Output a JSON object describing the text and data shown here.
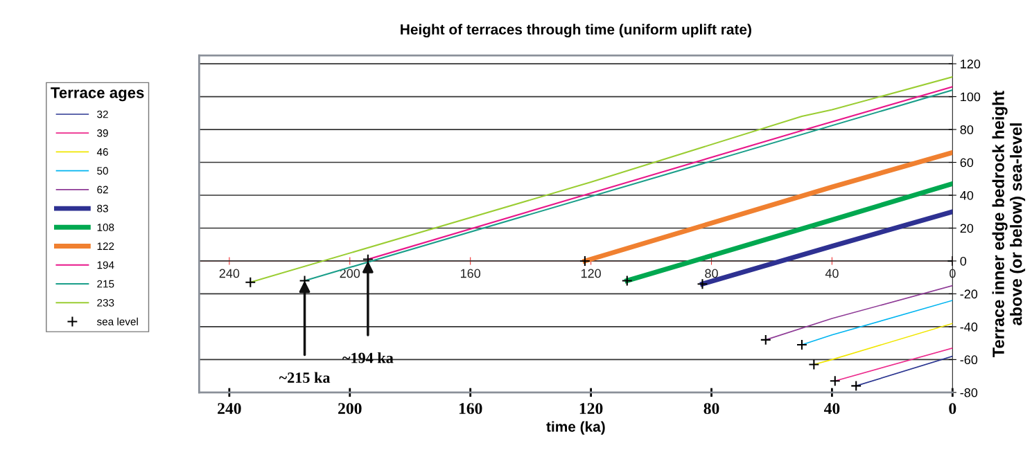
{
  "chart_data": {
    "type": "line",
    "title": "Height of terraces through time (uniform uplift rate)",
    "xlabel": "time (ka)",
    "ylabel": "Terrace inner edge bedrock height\nabove (or below) sea-level",
    "legend_title": "Terrace ages",
    "legend": "left",
    "grid": "y",
    "line_style": "solid",
    "xlim": [
      250,
      0
    ],
    "xticks": [
      240,
      200,
      160,
      120,
      80,
      40,
      0
    ],
    "x2lim": [
      250,
      0
    ],
    "x2ticks": [
      240,
      200,
      160,
      120,
      80,
      40,
      0
    ],
    "ylim": [
      -80,
      125
    ],
    "yticks": [
      -80,
      -60,
      -40,
      -20,
      0,
      20,
      40,
      60,
      80,
      100,
      120
    ],
    "series": [
      {
        "name": "32",
        "color": "#2a3590",
        "x": [
          32,
          0
        ],
        "values": [
          -76,
          -58
        ]
      },
      {
        "name": "39",
        "color": "#ec2a8c",
        "x": [
          39,
          0
        ],
        "values": [
          -73,
          -53
        ]
      },
      {
        "name": "46",
        "color": "#f0e600",
        "x": [
          46,
          40,
          0
        ],
        "values": [
          -63,
          -60,
          -38
        ]
      },
      {
        "name": "50",
        "color": "#00b4f0",
        "x": [
          50,
          40,
          0
        ],
        "values": [
          -51,
          -45,
          -24
        ]
      },
      {
        "name": "62",
        "color": "#8e3a96",
        "x": [
          62,
          40,
          0
        ],
        "values": [
          -48,
          -35,
          -15
        ]
      },
      {
        "name": "83",
        "color": "#2e3192",
        "x": [
          83,
          40,
          0
        ],
        "values": [
          -14,
          9,
          30
        ]
      },
      {
        "name": "108",
        "color": "#00a850",
        "x": [
          108,
          40,
          0
        ],
        "values": [
          -12,
          25,
          47
        ]
      },
      {
        "name": "122",
        "color": "#f08030",
        "x": [
          122,
          40,
          0
        ],
        "values": [
          0,
          45,
          66
        ]
      },
      {
        "name": "194",
        "color": "#e8178a",
        "x": [
          194,
          47,
          0
        ],
        "values": [
          1,
          81,
          106
        ]
      },
      {
        "name": "215",
        "color": "#1a9e8a",
        "x": [
          215,
          100,
          0
        ],
        "values": [
          -12,
          50,
          104
        ]
      },
      {
        "name": "233",
        "color": "#9acd32",
        "x": [
          233,
          120,
          50,
          40,
          0
        ],
        "values": [
          -13,
          48,
          88,
          92,
          112
        ]
      },
      {
        "name": "sea level",
        "type": "scatter",
        "marker": "cross",
        "color": "#000000",
        "x": [
          233,
          215,
          194,
          122,
          108,
          83,
          62,
          50,
          46,
          39,
          32,
          0
        ],
        "values": [
          -13,
          -12,
          1,
          0,
          -12,
          -14,
          -48,
          -51,
          -63,
          -73,
          -76,
          0
        ]
      }
    ],
    "annotations": [
      {
        "text": "~215 ka",
        "x": 215,
        "y": -12
      },
      {
        "text": "~194 ka",
        "x": 194,
        "y": 0
      }
    ]
  }
}
